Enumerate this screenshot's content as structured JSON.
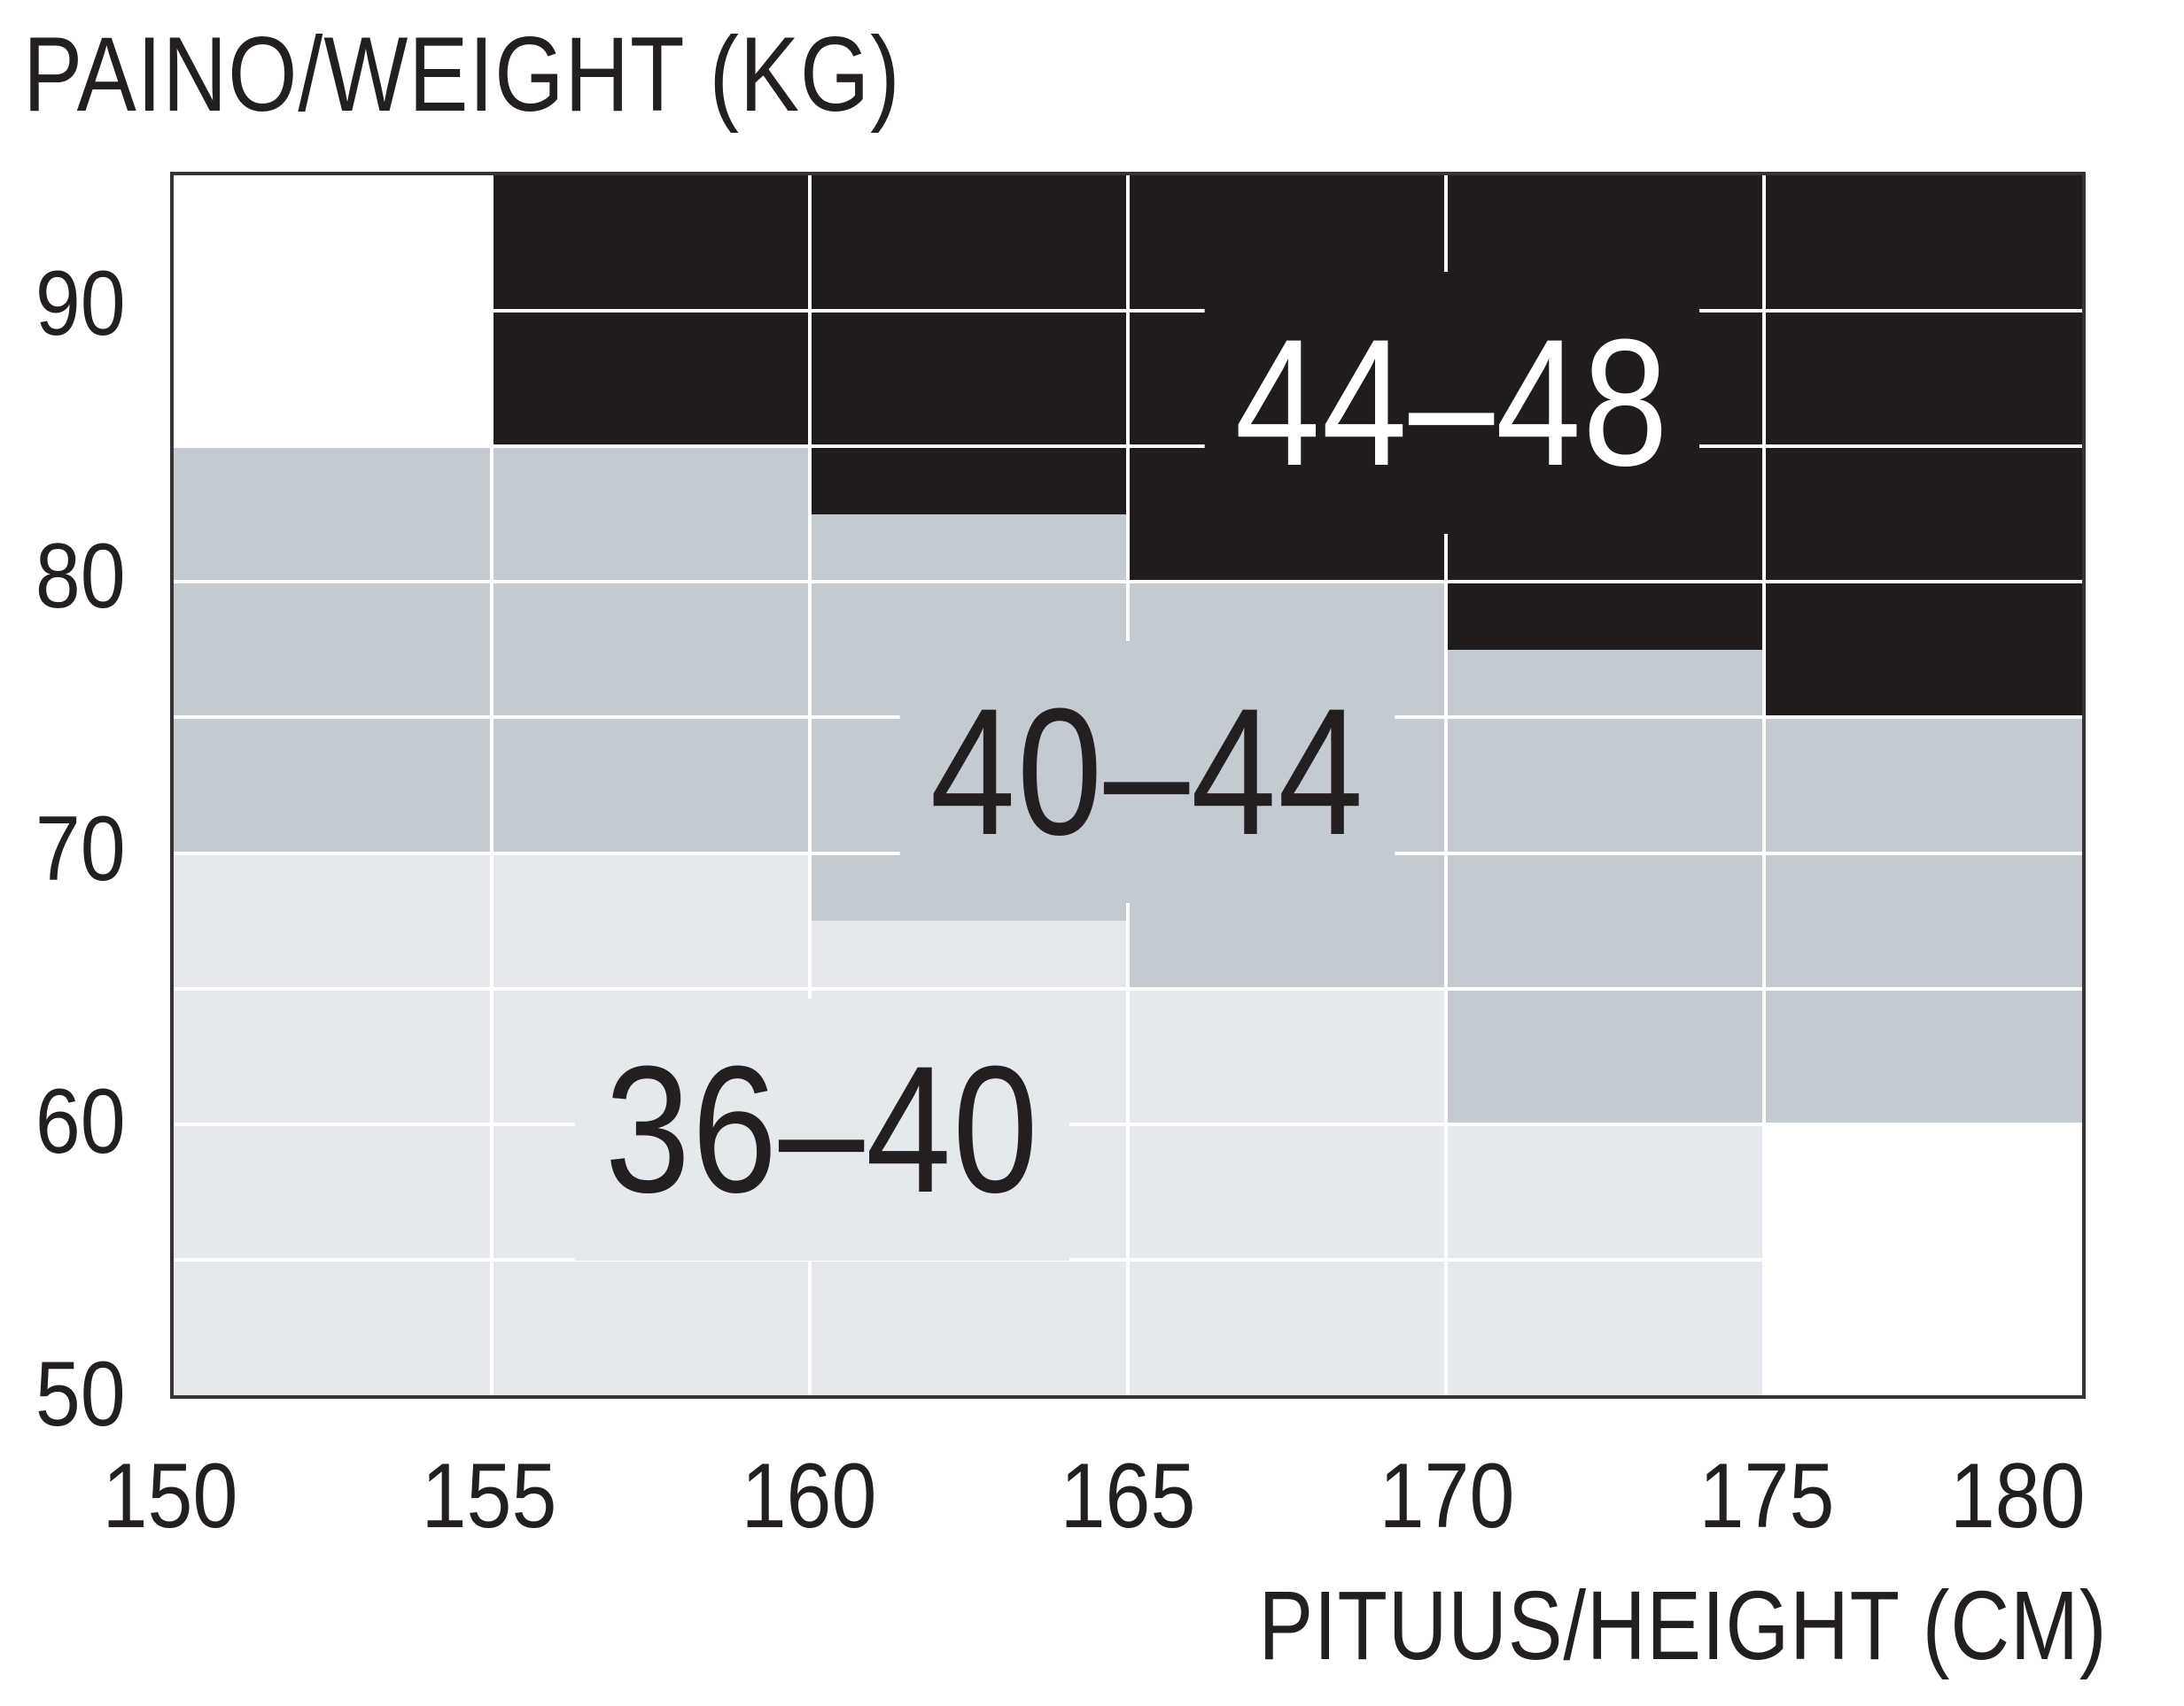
{
  "title": "PAINO/WEIGHT (KG)",
  "x_axis": {
    "title": "PITUUS/HEIGHT (CM)",
    "ticks": [
      "150",
      "155",
      "160",
      "165",
      "170",
      "175",
      "180"
    ]
  },
  "y_axis": {
    "ticks": [
      "90",
      "80",
      "70",
      "60",
      "50"
    ]
  },
  "colors": {
    "background": "#ffffff",
    "border": "#373334",
    "gridline": "#ffffff",
    "text": "#231f20",
    "size_44_48": "#201c1d",
    "size_40_44": "#c4cad1",
    "size_36_40": "#e5e9ed"
  },
  "chart_data": {
    "type": "heatmap",
    "title": "PAINO/WEIGHT (KG)",
    "xlabel": "PITUUS/HEIGHT (CM)",
    "ylabel": "PAINO/WEIGHT (KG)",
    "x_unit": "cm",
    "y_unit": "kg",
    "xlim": [
      150,
      180
    ],
    "ylim": [
      50,
      95
    ],
    "x_tick_values": [
      150,
      155,
      160,
      165,
      170,
      175,
      180
    ],
    "y_tick_values": [
      90,
      80,
      70,
      60,
      50
    ],
    "x_gridlines": [
      155,
      160,
      165,
      170,
      175
    ],
    "y_gridlines": [
      55,
      60,
      65,
      70,
      75,
      80,
      85,
      90
    ],
    "grid": "on",
    "legend_position": "none",
    "regions": [
      {
        "size": "36–40",
        "color": "#e5e9ed",
        "cells": [
          {
            "height_from_cm": 150,
            "height_to_cm": 155,
            "weight_min_kg": 50,
            "weight_max_kg": 70
          },
          {
            "height_from_cm": 155,
            "height_to_cm": 160,
            "weight_min_kg": 50,
            "weight_max_kg": 70
          },
          {
            "height_from_cm": 160,
            "height_to_cm": 165,
            "weight_min_kg": 50,
            "weight_max_kg": 67.5
          },
          {
            "height_from_cm": 165,
            "height_to_cm": 170,
            "weight_min_kg": 50,
            "weight_max_kg": 65
          },
          {
            "height_from_cm": 170,
            "height_to_cm": 175,
            "weight_min_kg": 50,
            "weight_max_kg": 60
          }
        ]
      },
      {
        "size": "40–44",
        "color": "#c4cad1",
        "cells": [
          {
            "height_from_cm": 150,
            "height_to_cm": 155,
            "weight_min_kg": 70,
            "weight_max_kg": 85
          },
          {
            "height_from_cm": 155,
            "height_to_cm": 160,
            "weight_min_kg": 70,
            "weight_max_kg": 85
          },
          {
            "height_from_cm": 160,
            "height_to_cm": 165,
            "weight_min_kg": 67.5,
            "weight_max_kg": 82.5
          },
          {
            "height_from_cm": 165,
            "height_to_cm": 170,
            "weight_min_kg": 65,
            "weight_max_kg": 80
          },
          {
            "height_from_cm": 170,
            "height_to_cm": 175,
            "weight_min_kg": 60,
            "weight_max_kg": 77.5
          },
          {
            "height_from_cm": 175,
            "height_to_cm": 180,
            "weight_min_kg": 60,
            "weight_max_kg": 75
          }
        ]
      },
      {
        "size": "44–48",
        "color": "#201c1d",
        "cells": [
          {
            "height_from_cm": 155,
            "height_to_cm": 160,
            "weight_min_kg": 85,
            "weight_max_kg": 95
          },
          {
            "height_from_cm": 160,
            "height_to_cm": 165,
            "weight_min_kg": 82.5,
            "weight_max_kg": 95
          },
          {
            "height_from_cm": 165,
            "height_to_cm": 170,
            "weight_min_kg": 80,
            "weight_max_kg": 95
          },
          {
            "height_from_cm": 170,
            "height_to_cm": 175,
            "weight_min_kg": 77.5,
            "weight_max_kg": 95
          },
          {
            "height_from_cm": 175,
            "height_to_cm": 180,
            "weight_min_kg": 75,
            "weight_max_kg": 95
          }
        ]
      }
    ],
    "annotations": [
      {
        "text": "44–48",
        "x_cm": 170.1,
        "y_kg": 86.6,
        "text_color": "#ffffff",
        "background_color": "#201c1d"
      },
      {
        "text": "40–44",
        "x_cm": 165.3,
        "y_kg": 73.0,
        "text_color": "#231f20",
        "background_color": "#c4cad1"
      },
      {
        "text": "36–40",
        "x_cm": 160.2,
        "y_kg": 59.8,
        "text_color": "#231f20",
        "background_color": "#e5e9ed"
      }
    ]
  }
}
